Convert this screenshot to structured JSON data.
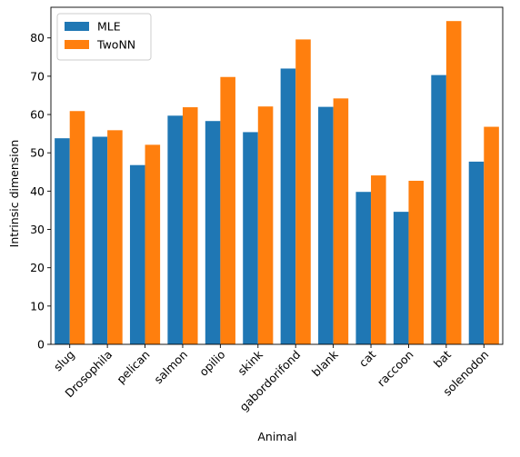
{
  "chart_data": {
    "type": "bar",
    "xlabel": "Animal",
    "ylabel": "Intrinsic dimension",
    "ylim": [
      0,
      88
    ],
    "yticks": [
      0,
      10,
      20,
      30,
      40,
      50,
      60,
      70,
      80
    ],
    "ytick_labels": [
      "0",
      "10",
      "20",
      "30",
      "40",
      "50",
      "60",
      "70",
      "80"
    ],
    "categories": [
      "slug",
      "Drosophila",
      "pelican",
      "salmon",
      "opilio",
      "skink",
      "gabordorifond",
      "blank",
      "cat",
      "raccoon",
      "bat",
      "solenodon"
    ],
    "series": [
      {
        "name": "MLE",
        "color": "#1f77b4",
        "values": [
          53.8,
          54.2,
          46.8,
          59.7,
          58.3,
          55.4,
          72.0,
          62.0,
          39.8,
          34.6,
          70.3,
          47.7
        ]
      },
      {
        "name": "TwoNN",
        "color": "#ff7f0e",
        "values": [
          60.9,
          55.9,
          52.1,
          61.9,
          69.8,
          62.1,
          79.6,
          64.2,
          44.1,
          42.7,
          84.4,
          56.8
        ]
      }
    ],
    "legend_position": "top-left",
    "grid": false
  }
}
